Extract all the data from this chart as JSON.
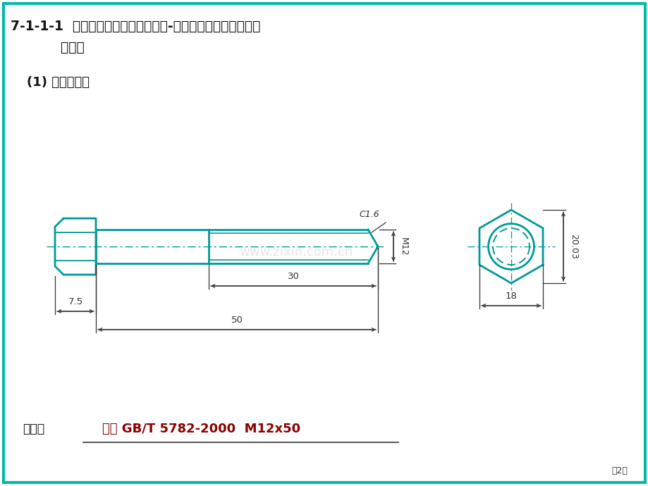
{
  "title_line1": "7-1-1-1  螺纹紧固件标识及画法练习-由所给图形及尺寸，写出",
  "title_line2": "    标识。",
  "subtitle": "(1) 六角头螺栓",
  "label_text": "标记：",
  "label_answer": "螺栓 GB/T 5782-2000  M12x50",
  "page_num": "第2页",
  "border_color": "#00BBAA",
  "bolt_color": "#009999",
  "dim_color": "#333333",
  "title_color": "#111111",
  "label_answer_color": "#8B0000",
  "background_color": "#FFFFFF",
  "watermark": "www.zixin.com.cn"
}
